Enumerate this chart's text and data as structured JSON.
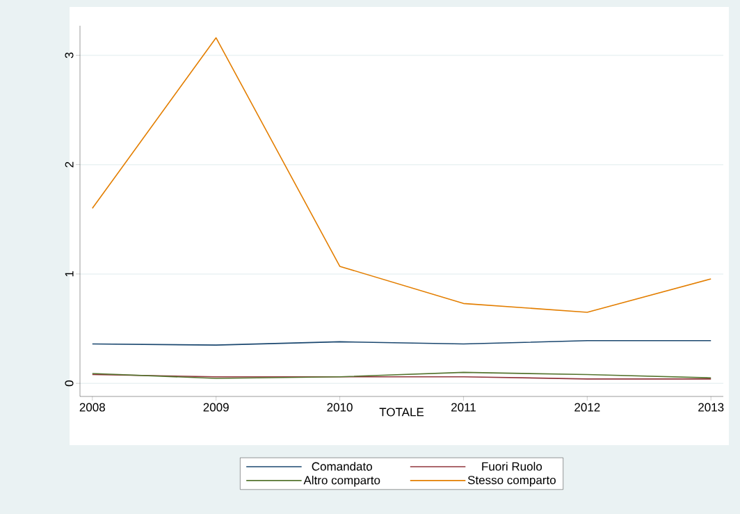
{
  "chart_data": {
    "type": "line",
    "xlabel": "TOTALE",
    "x": [
      2008,
      2009,
      2010,
      2011,
      2012,
      2013
    ],
    "xlim": [
      2007.9,
      2013.1
    ],
    "xticks": [
      2008,
      2009,
      2010,
      2011,
      2012,
      2013
    ],
    "ylim": [
      -0.12,
      3.27
    ],
    "yticks": [
      0,
      1,
      2,
      3
    ],
    "grid": "y",
    "legend": "bottom",
    "marker": "none",
    "line_style": "solid",
    "series": [
      {
        "name": "Comandato",
        "color": "#1a476f",
        "values": [
          0.36,
          0.35,
          0.38,
          0.36,
          0.39,
          0.39
        ]
      },
      {
        "name": "Fuori Ruolo",
        "color": "#90353b",
        "values": [
          0.08,
          0.06,
          0.06,
          0.06,
          0.04,
          0.04
        ]
      },
      {
        "name": "Altro comparto",
        "color": "#55752f",
        "values": [
          0.09,
          0.045,
          0.06,
          0.1,
          0.08,
          0.05
        ]
      },
      {
        "name": "Stesso comparto",
        "color": "#e37e00",
        "values": [
          1.6,
          3.16,
          1.07,
          0.73,
          0.65,
          0.955
        ]
      }
    ]
  }
}
